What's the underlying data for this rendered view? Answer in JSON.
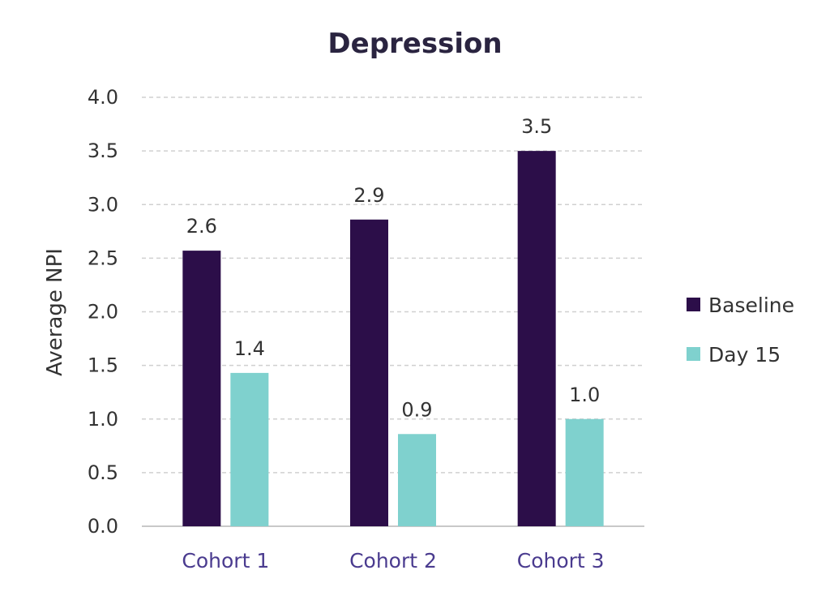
{
  "chart_data": {
    "type": "bar",
    "title": "Depression",
    "xlabel": "",
    "ylabel": "Average NPI",
    "ylim": [
      0,
      4
    ],
    "yticks": [
      "0.0",
      "0.5",
      "1.0",
      "1.5",
      "2.0",
      "2.5",
      "3.0",
      "3.5",
      "4.0"
    ],
    "categories": [
      "Cohort 1",
      "Cohort 2",
      "Cohort 3"
    ],
    "series": [
      {
        "name": "Baseline",
        "values": [
          2.57,
          2.86,
          3.5
        ],
        "labels": [
          "2.6",
          "2.9",
          "3.5"
        ],
        "color": "#2c0e49"
      },
      {
        "name": "Day 15",
        "values": [
          1.43,
          0.86,
          1.0
        ],
        "labels": [
          "1.4",
          "0.9",
          "1.0"
        ],
        "color": "#7fd1ce"
      }
    ],
    "grid": true,
    "legend": "right"
  },
  "colors": {
    "gridline": "#d0d0d0",
    "axis": "#c8c8c8",
    "category_text": "#4a3b8f"
  }
}
